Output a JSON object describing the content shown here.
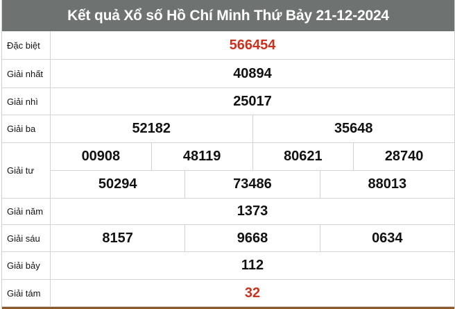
{
  "title": "Kết quả Xổ số Hồ Chí Minh Thứ Bảy 21-12-2024",
  "colors": {
    "header_bg": "#6e7371",
    "highlight": "#c8321e",
    "bottom_border": "#8a5a2b"
  },
  "prizes": [
    {
      "label": "Đặc biệt",
      "rows": [
        [
          "566454"
        ]
      ],
      "highlight": true
    },
    {
      "label": "Giải nhất",
      "rows": [
        [
          "40894"
        ]
      ]
    },
    {
      "label": "Giải nhì",
      "rows": [
        [
          "25017"
        ]
      ]
    },
    {
      "label": "Giải ba",
      "rows": [
        [
          "52182",
          "35648"
        ]
      ]
    },
    {
      "label": "Giải tư",
      "rows": [
        [
          "00908",
          "48119",
          "80621",
          "28740"
        ],
        [
          "50294",
          "73486",
          "88013"
        ]
      ]
    },
    {
      "label": "Giải năm",
      "rows": [
        [
          "1373"
        ]
      ]
    },
    {
      "label": "Giải sáu",
      "rows": [
        [
          "8157",
          "9668",
          "0634"
        ]
      ]
    },
    {
      "label": "Giải bảy",
      "rows": [
        [
          "112"
        ]
      ]
    },
    {
      "label": "Giải tám",
      "rows": [
        [
          "32"
        ]
      ],
      "highlight": true
    }
  ]
}
